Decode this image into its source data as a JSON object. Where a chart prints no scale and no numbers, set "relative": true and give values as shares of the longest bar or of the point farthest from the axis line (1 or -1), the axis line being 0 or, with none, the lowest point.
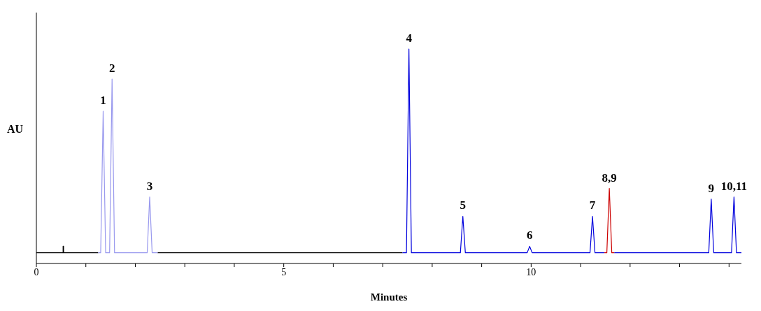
{
  "chart_data": {
    "type": "line",
    "relative": true,
    "xlabel": "Minutes",
    "ylabel": "AU",
    "xlim": [
      0,
      14.25
    ],
    "xticks": [
      0,
      {
        "value": 1,
        "label": null
      },
      {
        "value": 2,
        "label": null
      },
      {
        "value": 3,
        "label": null
      },
      {
        "value": 4,
        "label": null
      },
      5,
      {
        "value": 6,
        "label": null
      },
      {
        "value": 7,
        "label": null
      },
      {
        "value": 8,
        "label": null
      },
      {
        "value": 9,
        "label": null
      },
      10,
      {
        "value": 11,
        "label": null
      },
      {
        "value": 12,
        "label": null
      },
      {
        "value": 13,
        "label": null
      },
      {
        "value": 14,
        "label": null
      }
    ],
    "marker": "none",
    "line_style": "solid",
    "series": [
      {
        "color": "#000000",
        "x": [
          0,
          0.54,
          0.54,
          0.55,
          0.55,
          1.25,
          1.8,
          2.45,
          7.4
        ],
        "values": [
          0.05,
          0.05,
          0.08,
          0.08,
          0.05,
          0.05,
          null,
          0.05,
          0.05
        ]
      },
      {
        "color": "#9999ee",
        "x": [
          1.25,
          1.3,
          1.35,
          1.4,
          1.48,
          1.53,
          1.58,
          2.24,
          2.29,
          2.34,
          2.45
        ],
        "values": [
          0.05,
          0.05,
          0.71,
          0.05,
          0.05,
          0.86,
          0.05,
          0.05,
          0.31,
          0.05,
          0.05
        ]
      },
      {
        "color": "#0000dd",
        "x": [
          7.4,
          7.48,
          7.53,
          7.58,
          8.57,
          8.62,
          8.67,
          9.92,
          9.97,
          10.02,
          11.19,
          11.24,
          11.29,
          11.48,
          11.55,
          11.68,
          13.59,
          13.64,
          13.69,
          14.05,
          14.1,
          14.15,
          14.25
        ],
        "values": [
          0.05,
          0.05,
          1,
          0.05,
          0.05,
          0.22,
          0.05,
          0.05,
          0.08,
          0.05,
          0.05,
          0.22,
          0.05,
          0.05,
          null,
          0.05,
          0.05,
          0.3,
          0.05,
          0.05,
          0.31,
          0.05,
          0.05
        ]
      },
      {
        "color": "#cc0000",
        "x": [
          11.48,
          11.53,
          11.58,
          11.63,
          11.68
        ],
        "values": [
          0.05,
          0.05,
          0.35,
          0.05,
          0.05
        ]
      }
    ],
    "annotations": [
      {
        "text": "1",
        "x": 1.35,
        "y": 0.71
      },
      {
        "text": "2",
        "x": 1.53,
        "y": 0.86
      },
      {
        "text": "3",
        "x": 2.29,
        "y": 0.31
      },
      {
        "text": "4",
        "x": 7.53,
        "y": 1
      },
      {
        "text": "5",
        "x": 8.62,
        "y": 0.22
      },
      {
        "text": "6",
        "x": 9.97,
        "y": 0.08
      },
      {
        "text": "7",
        "x": 11.24,
        "y": 0.22
      },
      {
        "text": "8,9",
        "x": 11.58,
        "y": 0.35
      },
      {
        "text": "9",
        "x": 13.64,
        "y": 0.3
      },
      {
        "text": "10,11",
        "x": 14.1,
        "y": 0.31
      }
    ]
  }
}
